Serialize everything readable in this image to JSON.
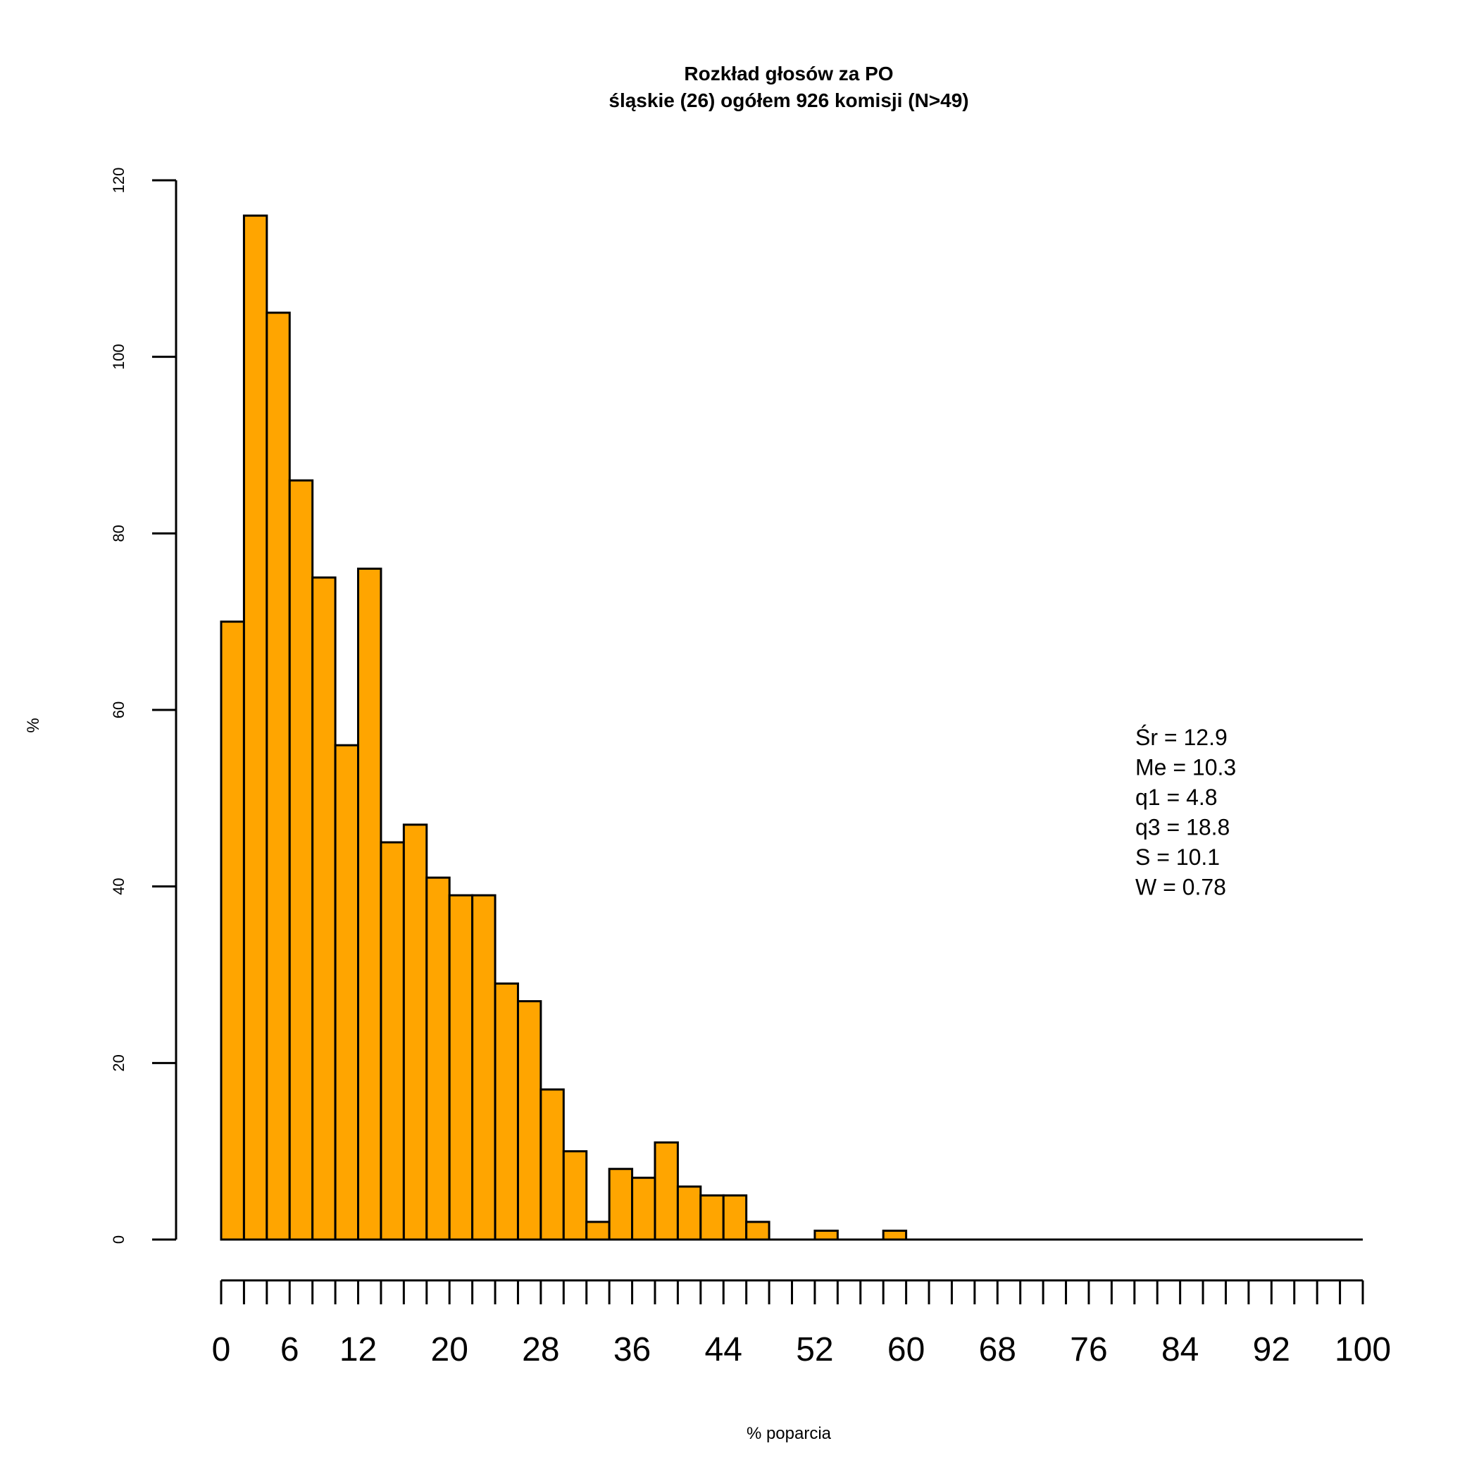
{
  "chart_data": {
    "type": "bar",
    "title": "Rozkład głosów za PO",
    "subtitle": "śląskie (26) ogółem 926 komisji (N>49)",
    "xlabel": "% poparcia",
    "ylabel": "%",
    "bin_width": 2,
    "x": [
      1,
      3,
      5,
      7,
      9,
      11,
      13,
      15,
      17,
      19,
      21,
      23,
      25,
      27,
      29,
      31,
      33,
      35,
      37,
      39,
      41,
      43,
      45,
      47,
      49,
      51,
      53,
      55,
      57,
      59,
      61,
      63,
      65,
      67,
      69,
      71,
      73,
      75,
      77,
      79,
      81,
      83,
      85,
      87,
      89,
      91,
      93,
      95,
      97,
      99
    ],
    "values": [
      70,
      116,
      105,
      86,
      75,
      56,
      76,
      45,
      47,
      41,
      39,
      39,
      29,
      27,
      17,
      10,
      2,
      8,
      7,
      11,
      6,
      5,
      5,
      2,
      0,
      0,
      1,
      0,
      0,
      1,
      0,
      0,
      0,
      0,
      0,
      0,
      0,
      0,
      0,
      0,
      0,
      0,
      0,
      0,
      0,
      0,
      0,
      0,
      0,
      0
    ],
    "xlim": [
      0,
      100
    ],
    "ylim": [
      0,
      120
    ],
    "xticks": [
      "0",
      "6",
      "12",
      "20",
      "28",
      "36",
      "44",
      "52",
      "60",
      "68",
      "76",
      "84",
      "92",
      "100"
    ],
    "yticks": [
      "0",
      "20",
      "40",
      "60",
      "80",
      "100",
      "120"
    ],
    "bar_color": "#FFA500",
    "grid": false,
    "stats": [
      "Śr = 12.9",
      "Me = 10.3",
      "q1 = 4.8",
      "q3 = 18.8",
      "S = 10.1",
      "W = 0.78"
    ]
  }
}
